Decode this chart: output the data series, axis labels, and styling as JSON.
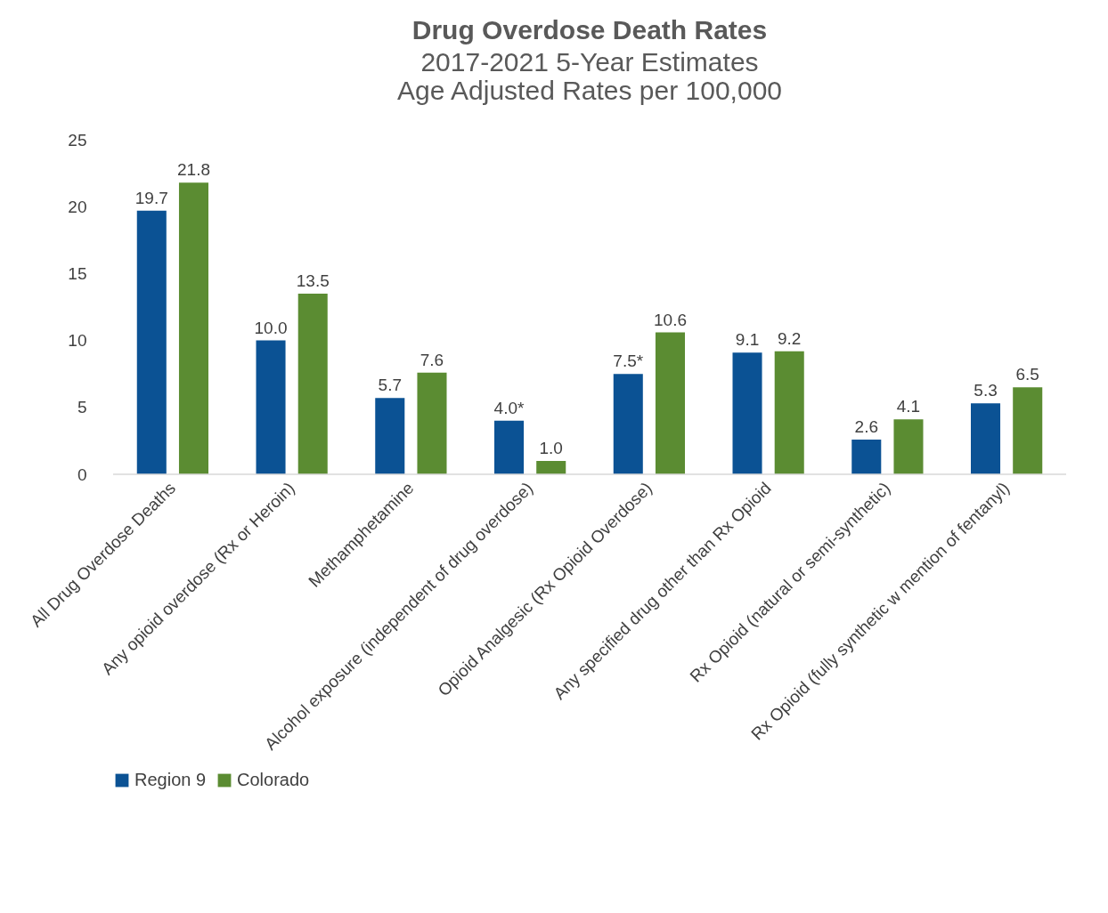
{
  "chart_data": {
    "type": "bar",
    "title": "Drug Overdose Death Rates",
    "subtitle": "2017-2021 5-Year Estimates\nAge Adjusted Rates per 100,000",
    "categories": [
      "All Drug Overdose Deaths",
      "Any opioid overdose (Rx or Heroin)",
      "Methamphetamine",
      "Alcohol exposure (independent of drug overdose)",
      "Opioid Analgesic (Rx Opioid Overdose)",
      "Any specified drug other than Rx Opioid",
      "Rx Opioid (natural or semi-synthetic)",
      "Rx Opioid (fully synthetic w mention of fentanyl)"
    ],
    "series": [
      {
        "name": "Region 9",
        "color": "#0b5294",
        "values": [
          19.7,
          10.0,
          5.7,
          4.0,
          7.5,
          9.1,
          2.6,
          5.3
        ],
        "value_labels": [
          "19.7",
          "10.0",
          "5.7",
          "4.0*",
          "7.5*",
          "9.1",
          "2.6",
          "5.3"
        ]
      },
      {
        "name": "Colorado",
        "color": "#5b8c32",
        "values": [
          21.8,
          13.5,
          7.6,
          1.0,
          10.6,
          9.2,
          4.1,
          6.5
        ],
        "value_labels": [
          "21.8",
          "13.5",
          "7.6",
          "1.0",
          "10.6",
          "9.2",
          "4.1",
          "6.5"
        ]
      }
    ],
    "ylim": [
      0,
      25
    ],
    "yticks": [
      0,
      5,
      10,
      15,
      20,
      25
    ],
    "grid": false,
    "legend": "bottom"
  }
}
